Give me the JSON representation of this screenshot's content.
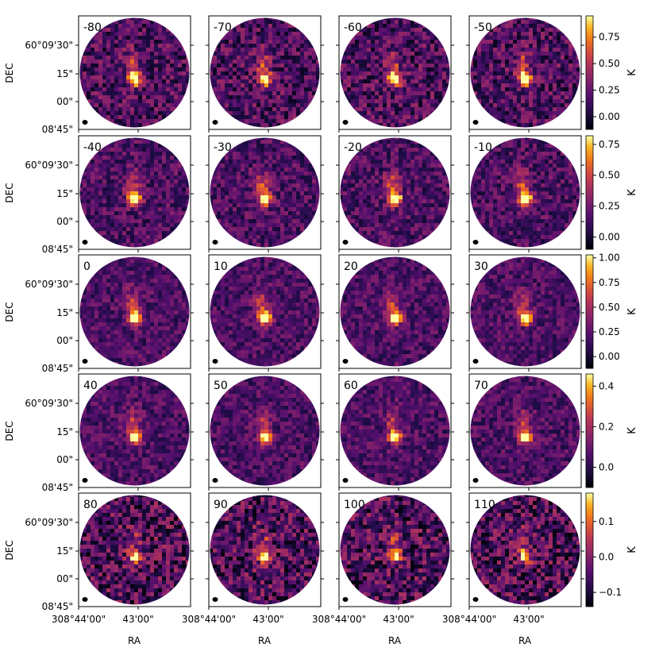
{
  "chart_data": {
    "type": "heatmap",
    "layout": "channel-map grid, 5 rows x 4 columns, circular field of view per panel",
    "colormap": "inferno",
    "xlabel": "RA",
    "ylabel": "DEC",
    "x_ticks": [
      "308°44'00\"",
      "43'00\"",
      "308°44'00\"",
      "43'00\"",
      "308°44'00\"",
      "43'00\"",
      "308°44'00\"",
      "43'00\""
    ],
    "y_ticks": [
      "60°09'30\"",
      "15\"",
      "00\"",
      "08'45\""
    ],
    "colorbar_unit": "K",
    "panels": [
      {
        "label": "-80"
      },
      {
        "label": "-70"
      },
      {
        "label": "-60"
      },
      {
        "label": "-50"
      },
      {
        "label": "-40"
      },
      {
        "label": "-30"
      },
      {
        "label": "-20"
      },
      {
        "label": "-10"
      },
      {
        "label": "0"
      },
      {
        "label": "10"
      },
      {
        "label": "20"
      },
      {
        "label": "30"
      },
      {
        "label": "40"
      },
      {
        "label": "50"
      },
      {
        "label": "60"
      },
      {
        "label": "70"
      },
      {
        "label": "80"
      },
      {
        "label": "90"
      },
      {
        "label": "100"
      },
      {
        "label": "110"
      }
    ],
    "colorbars": [
      {
        "row": 0,
        "range": [
          -0.12,
          0.95
        ],
        "ticks": [
          "0.75",
          "0.50",
          "0.25",
          "0.00"
        ],
        "tick_values": [
          0.75,
          0.5,
          0.25,
          0.0
        ]
      },
      {
        "row": 1,
        "range": [
          -0.1,
          0.82
        ],
        "ticks": [
          "0.75",
          "0.50",
          "0.25",
          "0.00"
        ],
        "tick_values": [
          0.75,
          0.5,
          0.25,
          0.0
        ]
      },
      {
        "row": 2,
        "range": [
          -0.12,
          1.03
        ],
        "ticks": [
          "1.00",
          "0.75",
          "0.50",
          "0.25",
          "0.00"
        ],
        "tick_values": [
          1.0,
          0.75,
          0.5,
          0.25,
          0.0
        ]
      },
      {
        "row": 3,
        "range": [
          -0.1,
          0.46
        ],
        "ticks": [
          "0.4",
          "0.2",
          "0.0"
        ],
        "tick_values": [
          0.4,
          0.2,
          0.0
        ]
      },
      {
        "row": 4,
        "range": [
          -0.14,
          0.18
        ],
        "ticks": [
          "0.1",
          "0.0",
          "−0.1"
        ],
        "tick_values": [
          0.1,
          0.0,
          -0.1
        ]
      }
    ],
    "row_peak_fraction": [
      0.95,
      1.0,
      0.95,
      0.85,
      0.75
    ],
    "row_noise_fraction": [
      0.45,
      0.35,
      0.3,
      0.3,
      0.55
    ]
  }
}
